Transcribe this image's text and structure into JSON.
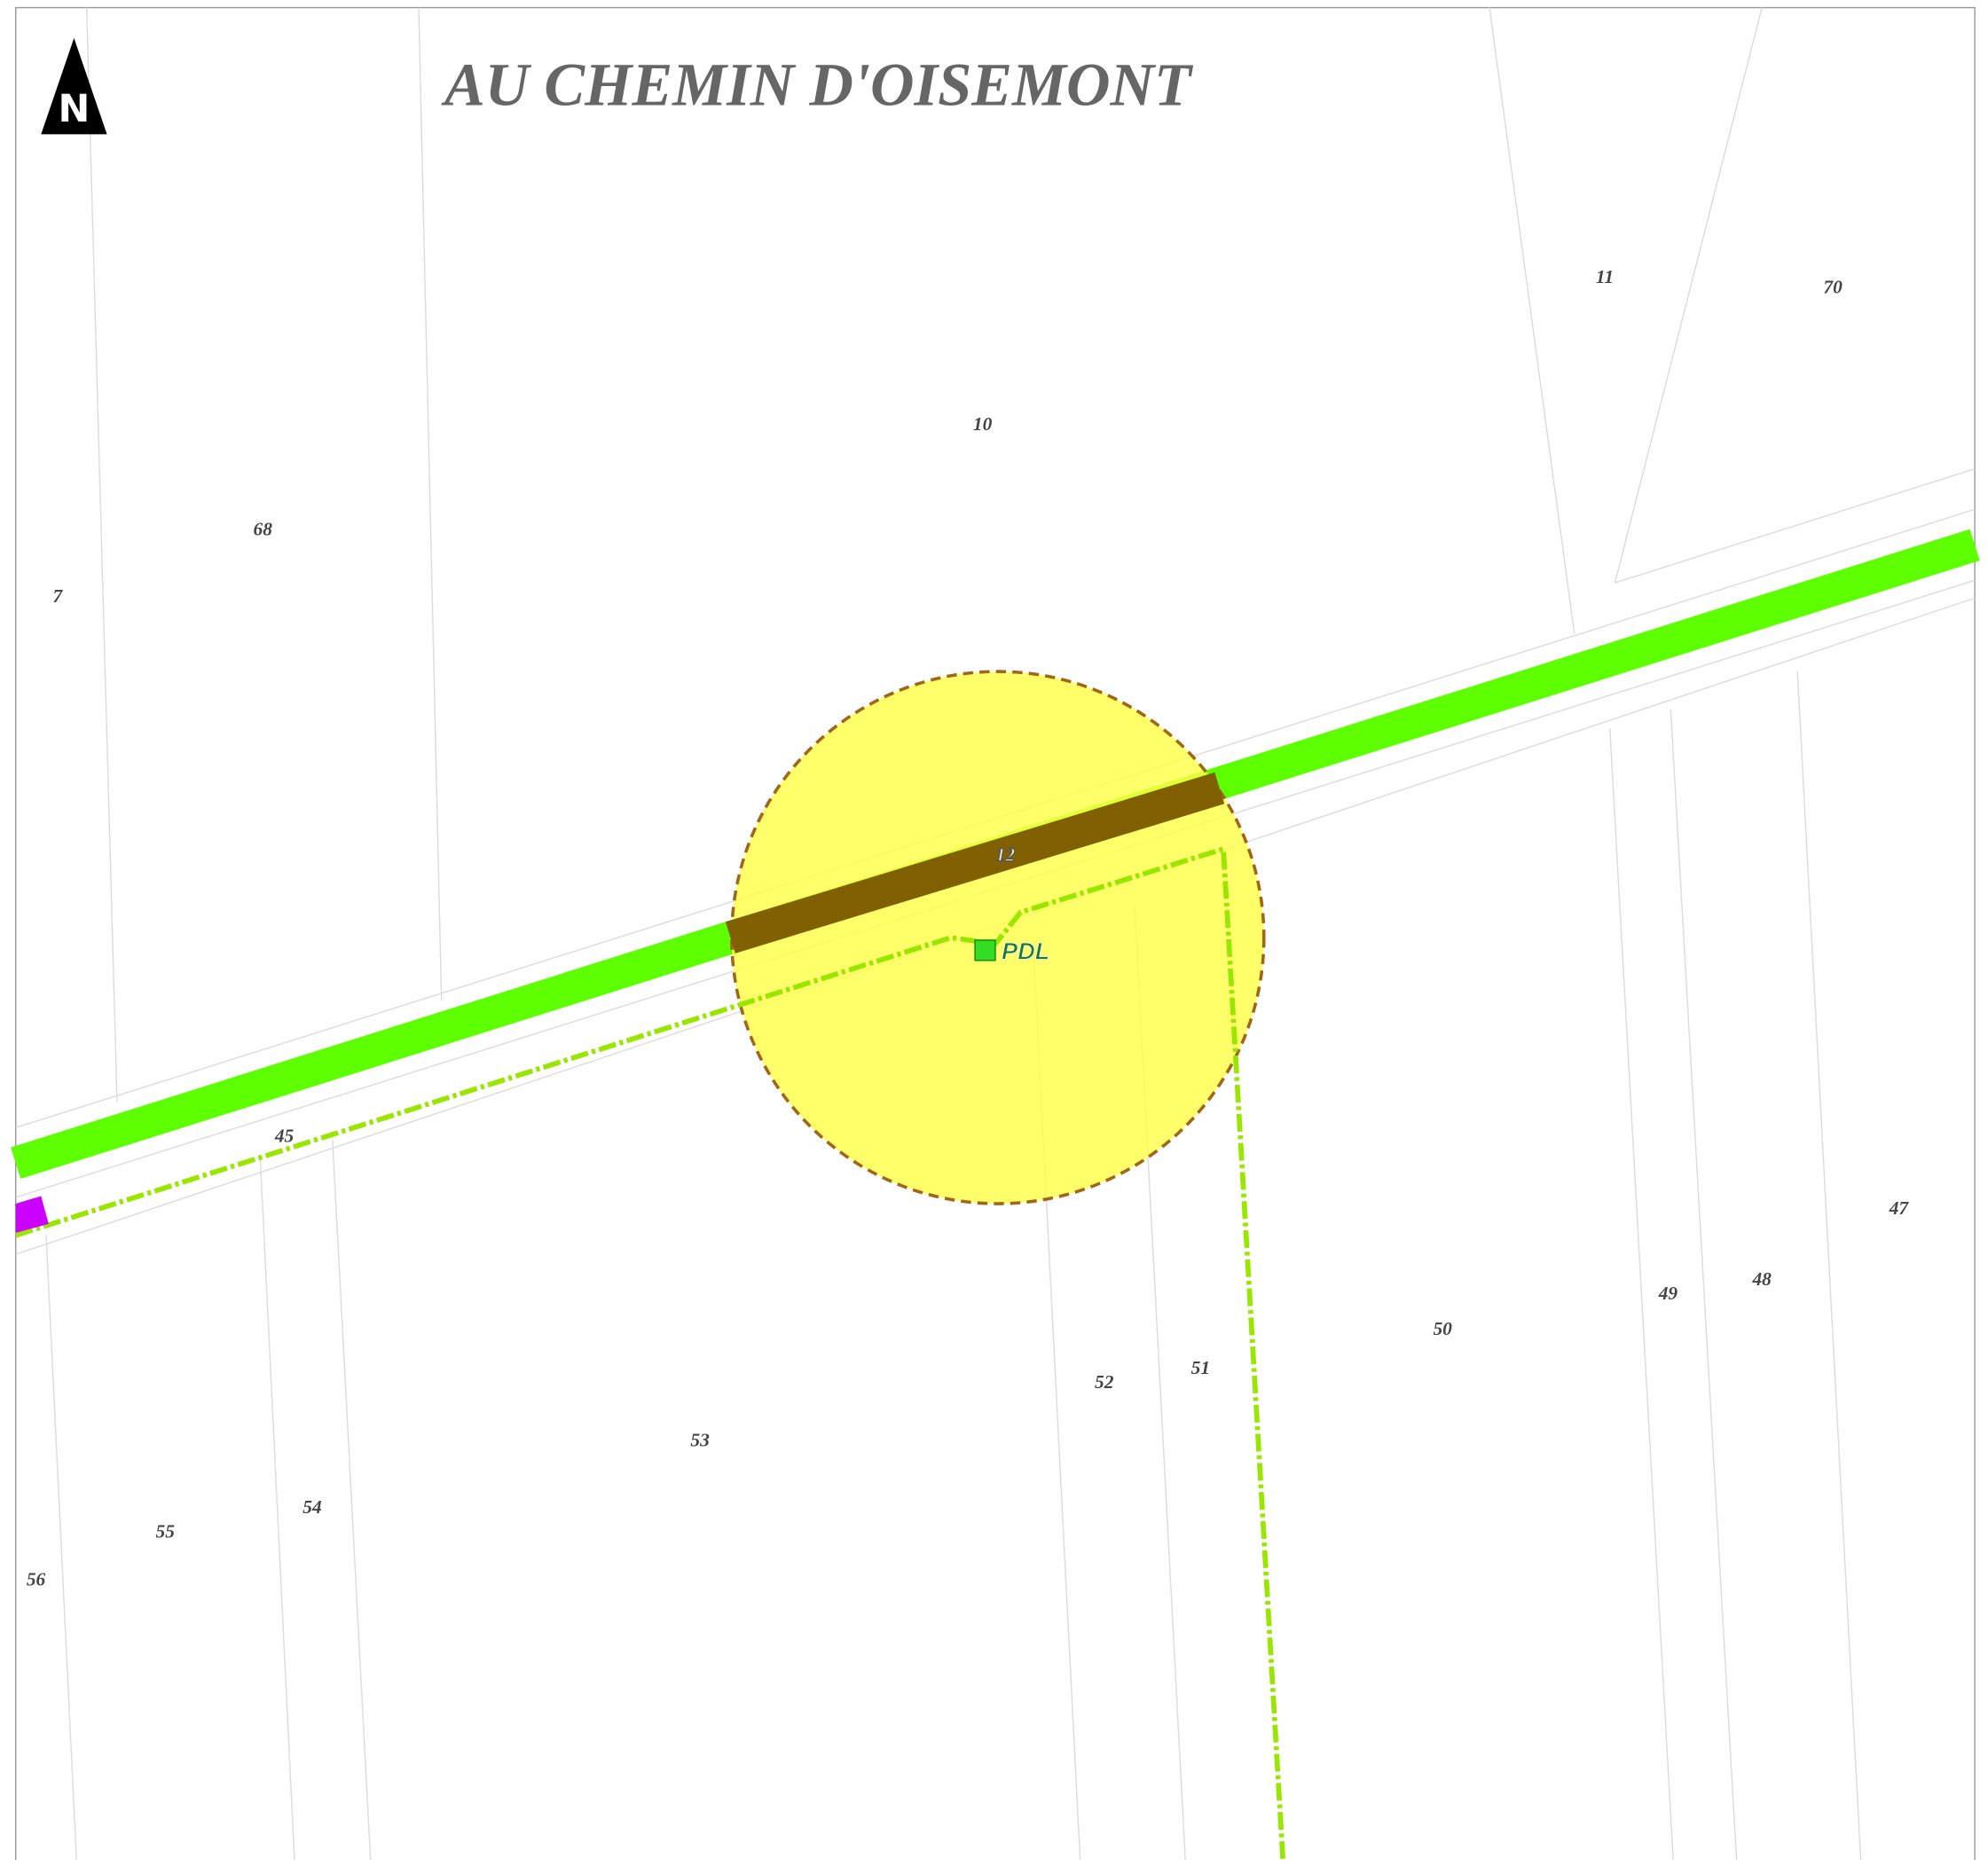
{
  "title": "AU CHEMIN D'OISEMONT",
  "north": "N",
  "parcels": [
    {
      "label": "11"
    },
    {
      "label": "70"
    },
    {
      "label": "10"
    },
    {
      "label": "68"
    },
    {
      "label": "7"
    },
    {
      "label": "45"
    },
    {
      "label": "47"
    },
    {
      "label": "49"
    },
    {
      "label": "48"
    },
    {
      "label": "50"
    },
    {
      "label": "52"
    },
    {
      "label": "51"
    },
    {
      "label": "53"
    },
    {
      "label": "54"
    },
    {
      "label": "55"
    },
    {
      "label": "56"
    }
  ],
  "road_label": "12",
  "point_label": "PDL"
}
